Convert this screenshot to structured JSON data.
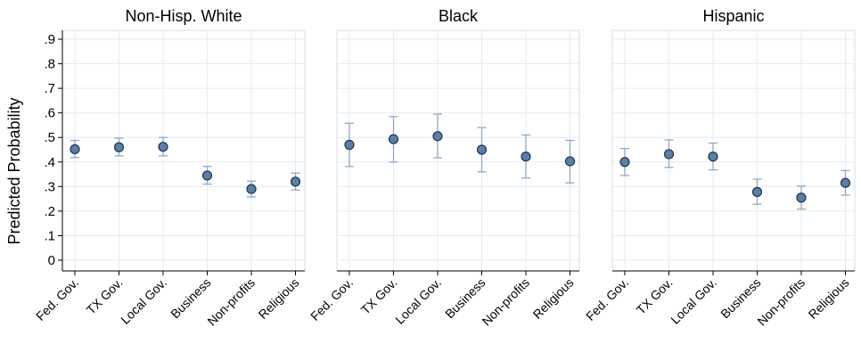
{
  "chart_data": {
    "type": "scatter",
    "ylabel": "Predicted Probability",
    "ylim": [
      0,
      0.9
    ],
    "y_ticks": [
      {
        "value": 0,
        "label": "0"
      },
      {
        "value": 0.1,
        "label": ".1"
      },
      {
        "value": 0.2,
        "label": ".2"
      },
      {
        "value": 0.3,
        "label": ".3"
      },
      {
        "value": 0.4,
        "label": ".4"
      },
      {
        "value": 0.5,
        "label": ".5"
      },
      {
        "value": 0.6,
        "label": ".6"
      },
      {
        "value": 0.7,
        "label": ".7"
      },
      {
        "value": 0.8,
        "label": ".8"
      },
      {
        "value": 0.9,
        "label": ".9"
      }
    ],
    "categories": [
      "Fed. Gov.",
      "TX Gov.",
      "Local Gov.",
      "Business",
      "Non-profits",
      "Religious"
    ],
    "grid": true,
    "marker_color": "#5b7fa6",
    "errorbar_color": "#8ea8c3",
    "panels": [
      {
        "title": "Non-Hisp. White",
        "values": [
          0.452,
          0.46,
          0.462,
          0.345,
          0.29,
          0.32
        ],
        "lower": [
          0.418,
          0.425,
          0.425,
          0.31,
          0.258,
          0.286
        ],
        "upper": [
          0.488,
          0.497,
          0.5,
          0.382,
          0.322,
          0.355
        ]
      },
      {
        "title": "Black",
        "values": [
          0.47,
          0.493,
          0.505,
          0.45,
          0.422,
          0.403
        ],
        "lower": [
          0.382,
          0.4,
          0.417,
          0.36,
          0.335,
          0.315
        ],
        "upper": [
          0.558,
          0.585,
          0.595,
          0.54,
          0.51,
          0.488
        ]
      },
      {
        "title": "Hispanic",
        "values": [
          0.4,
          0.432,
          0.422,
          0.278,
          0.255,
          0.315
        ],
        "lower": [
          0.345,
          0.378,
          0.368,
          0.228,
          0.208,
          0.265
        ],
        "upper": [
          0.455,
          0.49,
          0.477,
          0.33,
          0.302,
          0.365
        ]
      }
    ]
  }
}
